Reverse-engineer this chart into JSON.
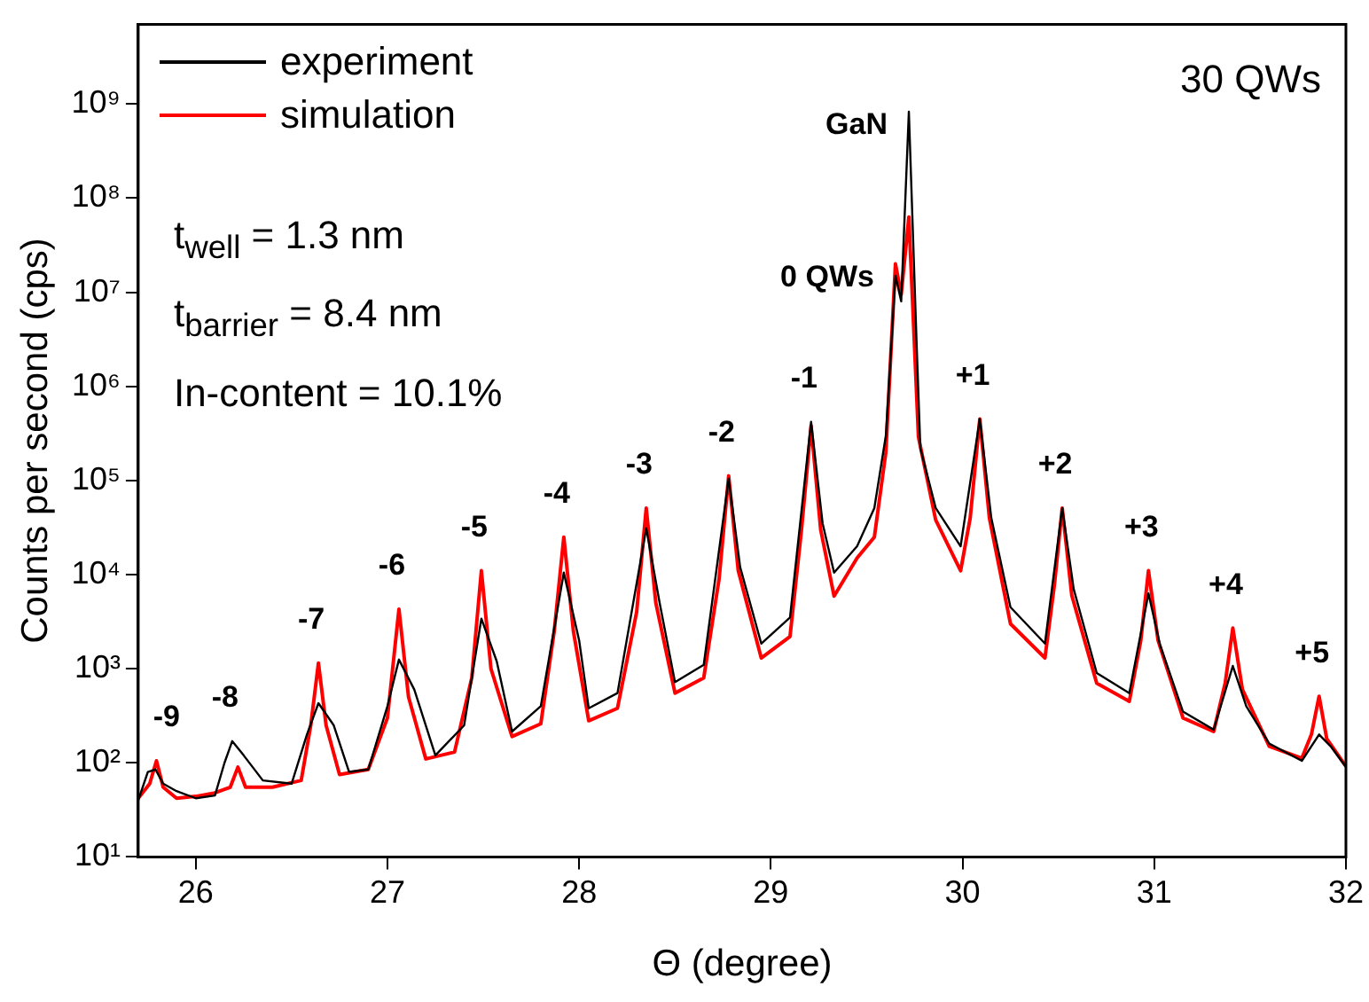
{
  "chart_data": {
    "type": "line",
    "xlabel": "Θ (degree)",
    "ylabel": "Counts per second (cps)",
    "log": "y",
    "grid": false,
    "legend": "top left",
    "xlim": [
      25.7,
      32
    ],
    "xticks": [
      26,
      27,
      28,
      29,
      30,
      31,
      32
    ],
    "ylim": [
      10,
      7000000000
    ],
    "yticks": [
      {
        "value": 10,
        "label": "10¹"
      },
      {
        "value": 100,
        "label": "10²"
      },
      {
        "value": 1000,
        "label": "10³"
      },
      {
        "value": 10000,
        "label": "10⁴"
      },
      {
        "value": 100000,
        "label": "10⁵"
      },
      {
        "value": 1000000,
        "label": "10⁶"
      },
      {
        "value": 10000000,
        "label": "10⁷"
      },
      {
        "value": 100000000,
        "label": "10⁸"
      },
      {
        "value": 1000000000,
        "label": "10⁹"
      }
    ],
    "series": [
      {
        "name": "experiment",
        "color": "#000000",
        "x": [
          25.7,
          25.75,
          25.79,
          25.83,
          25.9,
          26.0,
          26.1,
          26.15,
          26.19,
          26.25,
          26.35,
          26.5,
          26.58,
          26.64,
          26.72,
          26.8,
          26.9,
          27.0,
          27.06,
          27.14,
          27.25,
          27.4,
          27.49,
          27.57,
          27.65,
          27.8,
          27.92,
          28.0,
          28.05,
          28.2,
          28.35,
          28.42,
          28.5,
          28.65,
          28.78,
          28.84,
          28.95,
          29.1,
          29.21,
          29.27,
          29.33,
          29.45,
          29.54,
          29.6,
          29.65,
          29.68,
          29.72,
          29.76,
          29.78,
          29.86,
          29.99,
          30.09,
          30.15,
          30.25,
          30.43,
          30.52,
          30.58,
          30.7,
          30.87,
          30.97,
          31.03,
          31.15,
          31.31,
          31.41,
          31.48,
          31.6,
          31.77,
          31.86,
          31.92,
          32.0
        ],
        "values": [
          40,
          80,
          85,
          60,
          50,
          42,
          45,
          100,
          170,
          120,
          65,
          60,
          200,
          430,
          250,
          80,
          85,
          400,
          1250,
          600,
          120,
          250,
          3400,
          1200,
          215,
          400,
          10500,
          2000,
          380,
          550,
          31000,
          5000,
          720,
          1100,
          105000,
          12000,
          1850,
          3500,
          420000,
          35000,
          10500,
          20000,
          51000,
          300000,
          15000000,
          8000000,
          830000000,
          3000000,
          220000,
          51000,
          20000,
          450000,
          40000,
          4500,
          1850,
          51000,
          7000,
          900,
          550,
          6300,
          1800,
          350,
          225,
          1070,
          400,
          160,
          105,
          200,
          150,
          90
        ]
      },
      {
        "name": "simulation",
        "color": "#ff0000",
        "x": [
          25.7,
          25.76,
          25.795,
          25.83,
          25.9,
          26.0,
          26.1,
          26.18,
          26.22,
          26.26,
          26.4,
          26.55,
          26.6,
          26.64,
          26.68,
          26.75,
          26.9,
          27.0,
          27.06,
          27.11,
          27.2,
          27.35,
          27.44,
          27.49,
          27.54,
          27.65,
          27.8,
          27.87,
          27.92,
          27.97,
          28.05,
          28.2,
          28.3,
          28.35,
          28.4,
          28.5,
          28.65,
          28.73,
          28.78,
          28.83,
          28.95,
          29.1,
          29.16,
          29.21,
          29.26,
          29.33,
          29.45,
          29.54,
          29.6,
          29.65,
          29.68,
          29.72,
          29.77,
          29.86,
          29.99,
          30.04,
          30.09,
          30.14,
          30.25,
          30.43,
          30.48,
          30.52,
          30.57,
          30.7,
          30.87,
          30.93,
          30.97,
          31.02,
          31.15,
          31.31,
          31.37,
          31.41,
          31.46,
          31.6,
          31.77,
          31.82,
          31.86,
          31.9,
          32.0
        ],
        "values": [
          42,
          60,
          105,
          55,
          42,
          44,
          48,
          55,
          90,
          55,
          55,
          65,
          250,
          1150,
          250,
          75,
          85,
          300,
          4300,
          500,
          110,
          130,
          800,
          11000,
          1000,
          190,
          260,
          2500,
          25000,
          2500,
          280,
          380,
          4000,
          51000,
          5000,
          550,
          800,
          9000,
          112000,
          11000,
          1300,
          2200,
          30000,
          380000,
          30000,
          5900,
          15000,
          25000,
          200000,
          20000000,
          9500000,
          63000000,
          290000,
          38000,
          11000,
          40000,
          450000,
          40000,
          3000,
          1300,
          8000,
          51000,
          6000,
          700,
          450,
          2000,
          11000,
          2000,
          300,
          215,
          700,
          2700,
          600,
          150,
          112,
          200,
          510,
          180,
          92
        ]
      }
    ],
    "annotations": [
      "30 QWs",
      "t$_{well}$ = 1.3 nm",
      "t$_{barrier}$ = 8.4 nm",
      "In-content = 10.1%",
      {
        "text": "GaN",
        "x": 29.72,
        "y": 830000000
      },
      {
        "text": "0 QWs",
        "x": 29.65,
        "y": 20000000
      },
      {
        "text": "-9",
        "x": 25.795,
        "y": 105
      },
      {
        "text": "-8",
        "x": 26.19,
        "y": 170
      },
      {
        "text": "-7",
        "x": 26.64,
        "y": 1150
      },
      {
        "text": "-6",
        "x": 27.06,
        "y": 4300
      },
      {
        "text": "-5",
        "x": 27.49,
        "y": 11000
      },
      {
        "text": "-4",
        "x": 27.92,
        "y": 25000
      },
      {
        "text": "-3",
        "x": 28.35,
        "y": 51000
      },
      {
        "text": "-2",
        "x": 28.78,
        "y": 112000
      },
      {
        "text": "-1",
        "x": 29.21,
        "y": 420000
      },
      {
        "text": "+1",
        "x": 30.09,
        "y": 450000
      },
      {
        "text": "+2",
        "x": 30.52,
        "y": 51000
      },
      {
        "text": "+3",
        "x": 30.97,
        "y": 11000
      },
      {
        "text": "+4",
        "x": 31.41,
        "y": 2700
      },
      {
        "text": "+5",
        "x": 31.86,
        "y": 510
      }
    ]
  }
}
